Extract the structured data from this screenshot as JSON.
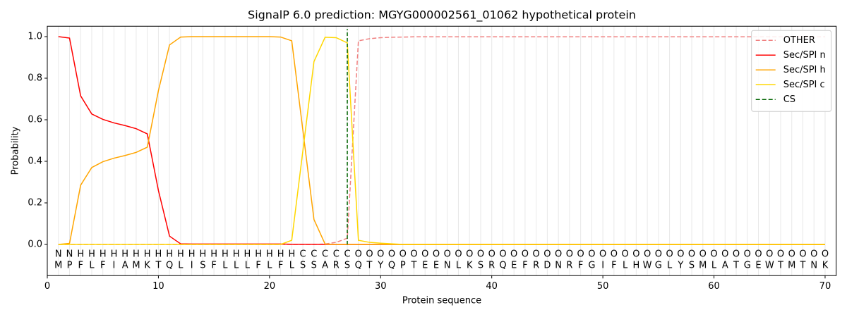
{
  "chart_data": {
    "type": "line",
    "title": "SignalP 6.0 prediction: MGYG000002561_01062 hypothetical protein",
    "x_label": "Protein sequence",
    "y_label": "Probability",
    "xlim": [
      0,
      71
    ],
    "ylim": [
      -0.15,
      1.05
    ],
    "xticks": [
      0,
      10,
      20,
      30,
      40,
      50,
      60,
      70
    ],
    "yticks": [
      {
        "value": 0,
        "label": "0.0"
      },
      {
        "value": 0.2,
        "label": "0.2"
      },
      {
        "value": 0.4,
        "label": "0.4"
      },
      {
        "value": 0.6,
        "label": "0.6"
      },
      {
        "value": 0.8,
        "label": "0.8"
      },
      {
        "value": 1,
        "label": "1.0"
      }
    ],
    "legend_position": "upper right",
    "x": [
      1,
      2,
      3,
      4,
      5,
      6,
      7,
      8,
      9,
      10,
      11,
      12,
      13,
      14,
      15,
      16,
      17,
      18,
      19,
      20,
      21,
      22,
      23,
      24,
      25,
      26,
      27,
      28,
      29,
      30,
      31,
      32,
      33,
      34,
      35,
      36,
      37,
      38,
      39,
      40,
      41,
      42,
      43,
      44,
      45,
      46,
      47,
      48,
      49,
      50,
      51,
      52,
      53,
      54,
      55,
      56,
      57,
      58,
      59,
      60,
      61,
      62,
      63,
      64,
      65,
      66,
      67,
      68,
      69,
      70
    ],
    "residues": [
      "M",
      "P",
      "F",
      "L",
      "F",
      "I",
      "A",
      "M",
      "K",
      "T",
      "Q",
      "L",
      "I",
      "S",
      "F",
      "L",
      "L",
      "L",
      "F",
      "L",
      "F",
      "L",
      "S",
      "S",
      "A",
      "R",
      "S",
      "Q",
      "T",
      "Y",
      "Q",
      "P",
      "T",
      "E",
      "E",
      "N",
      "L",
      "K",
      "S",
      "R",
      "Q",
      "E",
      "F",
      "R",
      "D",
      "N",
      "R",
      "F",
      "G",
      "I",
      "F",
      "L",
      "H",
      "W",
      "G",
      "L",
      "Y",
      "S",
      "M",
      "L",
      "A",
      "T",
      "G",
      "E",
      "W",
      "T",
      "M",
      "T",
      "N",
      "K"
    ],
    "labels": [
      "N",
      "N",
      "H",
      "H",
      "H",
      "H",
      "H",
      "H",
      "H",
      "H",
      "H",
      "H",
      "H",
      "H",
      "H",
      "H",
      "H",
      "H",
      "H",
      "H",
      "H",
      "H",
      "C",
      "C",
      "C",
      "C",
      "C",
      "O",
      "O",
      "O",
      "O",
      "O",
      "O",
      "O",
      "O",
      "O",
      "O",
      "O",
      "O",
      "O",
      "O",
      "O",
      "O",
      "O",
      "O",
      "O",
      "O",
      "O",
      "O",
      "O",
      "O",
      "O",
      "O",
      "O",
      "O",
      "O",
      "O",
      "O",
      "O",
      "O",
      "O",
      "O",
      "O",
      "O",
      "O",
      "O",
      "O",
      "O",
      "O",
      "O"
    ],
    "label_colors": {
      "N": "#ff0000",
      "H": "#ffa500",
      "C": "#ffd700",
      "O": "#808080"
    },
    "series": [
      {
        "name": "OTHER",
        "color": "#f08080",
        "dashed": true,
        "values": [
          0,
          0,
          0,
          0,
          0,
          0,
          0,
          0,
          0,
          0,
          0,
          0,
          0,
          0,
          0,
          0,
          0,
          0,
          0,
          0,
          0,
          0,
          0,
          0,
          0.002,
          0.01,
          0.03,
          0.98,
          0.99,
          0.995,
          0.997,
          0.998,
          0.999,
          0.999,
          0.999,
          0.999,
          0.999,
          0.999,
          0.999,
          0.999,
          0.999,
          0.999,
          0.999,
          0.999,
          0.999,
          0.999,
          0.999,
          0.999,
          0.999,
          0.999,
          0.999,
          0.999,
          0.999,
          0.999,
          0.999,
          0.999,
          0.999,
          0.999,
          0.999,
          0.999,
          0.999,
          0.999,
          0.999,
          0.999,
          0.999,
          0.999,
          0.999,
          0.999,
          0.999,
          0.999
        ]
      },
      {
        "name": "Sec/SPI n",
        "color": "#ff0000",
        "dashed": false,
        "values": [
          1.0,
          0.993,
          0.715,
          0.628,
          0.602,
          0.585,
          0.572,
          0.557,
          0.532,
          0.26,
          0.04,
          0.003,
          0.002,
          0.002,
          0.002,
          0.002,
          0.002,
          0.002,
          0.002,
          0.002,
          0.002,
          0.001,
          0.001,
          0.001,
          0,
          0,
          0,
          0,
          0,
          0,
          0,
          0,
          0,
          0,
          0,
          0,
          0,
          0,
          0,
          0,
          0,
          0,
          0,
          0,
          0,
          0,
          0,
          0,
          0,
          0,
          0,
          0,
          0,
          0,
          0,
          0,
          0,
          0,
          0,
          0,
          0,
          0,
          0,
          0,
          0,
          0,
          0,
          0,
          0,
          0
        ]
      },
      {
        "name": "Sec/SPI h",
        "color": "#ffa500",
        "dashed": false,
        "values": [
          0,
          0.005,
          0.285,
          0.37,
          0.398,
          0.415,
          0.428,
          0.443,
          0.468,
          0.74,
          0.96,
          0.998,
          1,
          1,
          1,
          1,
          1,
          1,
          1,
          1,
          0.998,
          0.98,
          0.55,
          0.12,
          0.002,
          0,
          0,
          0,
          0,
          0,
          0,
          0,
          0,
          0,
          0,
          0,
          0,
          0,
          0,
          0,
          0,
          0,
          0,
          0,
          0,
          0,
          0,
          0,
          0,
          0,
          0,
          0,
          0,
          0,
          0,
          0,
          0,
          0,
          0,
          0,
          0,
          0,
          0,
          0,
          0,
          0,
          0,
          0,
          0,
          0
        ]
      },
      {
        "name": "Sec/SPI c",
        "color": "#ffd700",
        "dashed": false,
        "values": [
          0,
          0,
          0,
          0,
          0,
          0,
          0,
          0,
          0,
          0,
          0,
          0,
          0,
          0,
          0,
          0,
          0,
          0,
          0,
          0,
          0,
          0.02,
          0.45,
          0.88,
          0.997,
          0.995,
          0.97,
          0.02,
          0.01,
          0.006,
          0.003,
          0,
          0,
          0,
          0,
          0,
          0,
          0,
          0,
          0,
          0,
          0,
          0,
          0,
          0,
          0,
          0,
          0,
          0,
          0,
          0,
          0,
          0,
          0,
          0,
          0,
          0,
          0,
          0,
          0,
          0,
          0,
          0,
          0,
          0,
          0,
          0,
          0,
          0,
          0
        ]
      }
    ],
    "markers": [
      {
        "name": "CS",
        "x": 27,
        "color": "#006400"
      }
    ]
  }
}
